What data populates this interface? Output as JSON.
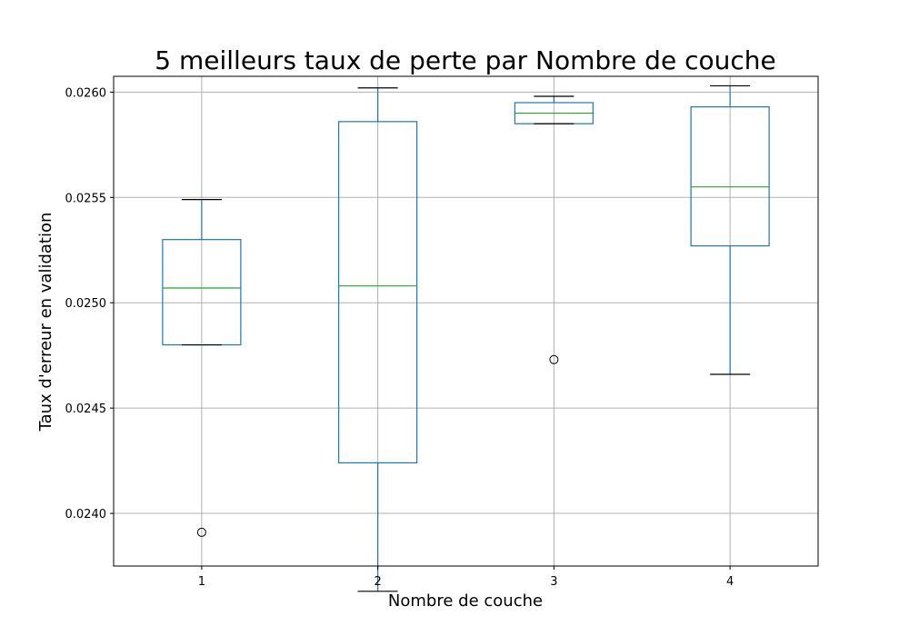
{
  "chart_data": {
    "type": "box",
    "title": "5 meilleurs taux de perte par Nombre de couche",
    "xlabel": "Nombre de couche",
    "ylabel": "Taux d'erreur en validation",
    "categories": [
      "1",
      "2",
      "3",
      "4"
    ],
    "ylim": [
      0.02375,
      0.026075
    ],
    "yticks": [
      0.024,
      0.0245,
      0.025,
      0.0255,
      0.026
    ],
    "ytick_labels": [
      "0.0240",
      "0.0245",
      "0.0250",
      "0.0255",
      "0.0260"
    ],
    "grid": true,
    "colors": {
      "box": "#1f77b4",
      "median": "#2ca02c",
      "whisker_cap": "#000000"
    },
    "boxes": [
      {
        "category": "1",
        "whislo": 0.0248,
        "q1": 0.0248,
        "median": 0.02507,
        "q3": 0.0253,
        "whishi": 0.02549,
        "fliers": [
          0.02391
        ]
      },
      {
        "category": "2",
        "whislo": 0.02363,
        "q1": 0.02424,
        "median": 0.02508,
        "q3": 0.02586,
        "whishi": 0.02602,
        "fliers": []
      },
      {
        "category": "3",
        "whislo": 0.02585,
        "q1": 0.02585,
        "median": 0.0259,
        "q3": 0.02595,
        "whishi": 0.02598,
        "fliers": [
          0.02473
        ]
      },
      {
        "category": "4",
        "whislo": 0.02466,
        "q1": 0.02527,
        "median": 0.02555,
        "q3": 0.02593,
        "whishi": 0.02603,
        "fliers": []
      }
    ]
  }
}
